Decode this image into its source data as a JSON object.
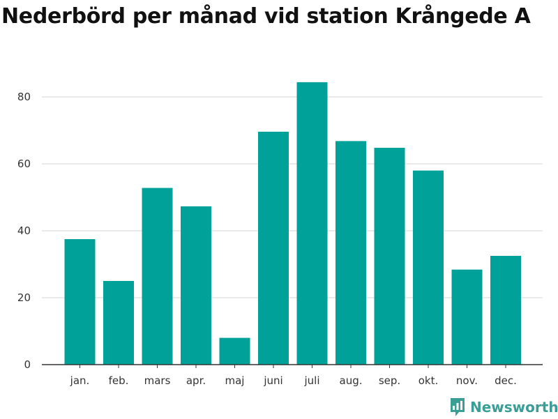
{
  "title": "Nederbörd per månad vid station Krångede A",
  "brand": {
    "name": "Newsworthy",
    "icon": "newsworthy-logo-icon",
    "color": "#3a9e96"
  },
  "colors": {
    "bar": "#00a199",
    "grid": "#d6d6d6",
    "axis": "#333333"
  },
  "chart_data": {
    "type": "bar",
    "title": "Nederbörd per månad vid station Krångede A",
    "xlabel": "",
    "ylabel": "",
    "categories": [
      "jan.",
      "feb.",
      "mars",
      "apr.",
      "maj",
      "juni",
      "juli",
      "aug.",
      "sep.",
      "okt.",
      "nov.",
      "dec."
    ],
    "values": [
      37.5,
      25,
      52.8,
      47.3,
      8,
      69.6,
      84.4,
      66.8,
      64.8,
      58,
      28.4,
      32.5
    ],
    "ylim": [
      0,
      90
    ],
    "yticks": [
      0,
      20,
      40,
      60,
      80
    ],
    "grid": true,
    "legend": "none"
  }
}
